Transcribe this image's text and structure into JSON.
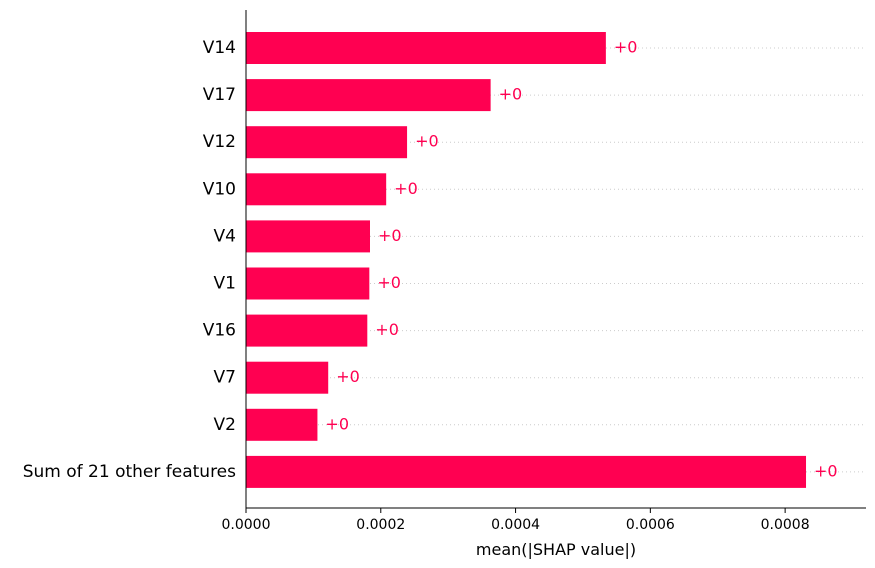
{
  "chart_data": {
    "type": "bar",
    "orientation": "horizontal",
    "categories": [
      "V14",
      "V17",
      "V12",
      "V10",
      "V4",
      "V1",
      "V16",
      "V7",
      "V2",
      "Sum of 21 other features"
    ],
    "values": [
      0.000534,
      0.000363,
      0.000239,
      0.000208,
      0.000184,
      0.000183,
      0.00018,
      0.000122,
      0.000106,
      0.000831
    ],
    "data_labels": [
      "+0",
      "+0",
      "+0",
      "+0",
      "+0",
      "+0",
      "+0",
      "+0",
      "+0",
      "+0"
    ],
    "xlabel": "mean(|SHAP value|)",
    "ylabel": "",
    "xlim": [
      0,
      0.00092
    ],
    "xticks": [
      0,
      0.0002,
      0.0004,
      0.0006,
      0.0008
    ],
    "xtick_labels": [
      "0.0000",
      "0.0002",
      "0.0004",
      "0.0006",
      "0.0008"
    ],
    "grid": "horizontal-dotted",
    "legend": "none",
    "colors": {
      "bar": "#ff0051",
      "value_label": "#ff0051",
      "grid": "#cccccc",
      "axis": "#000000"
    }
  }
}
